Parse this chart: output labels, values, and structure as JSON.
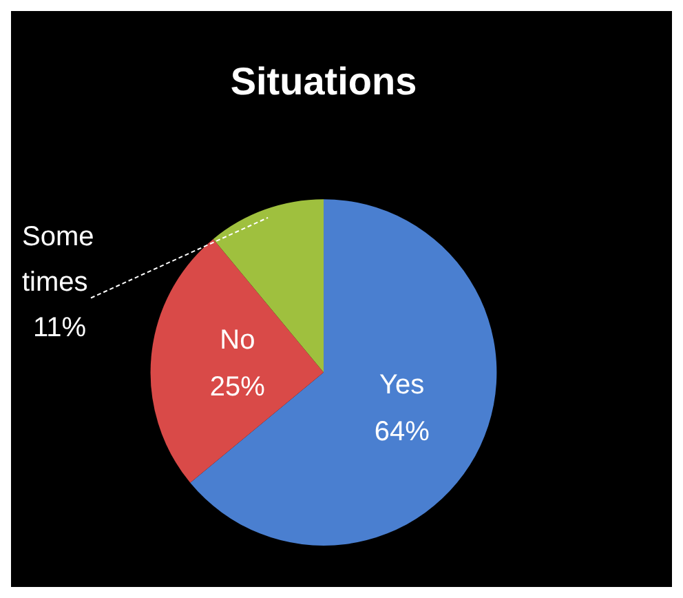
{
  "chart_data": {
    "type": "pie",
    "title": "Situations",
    "categories": [
      "Yes",
      "No",
      "Some times"
    ],
    "values": [
      64,
      25,
      11
    ],
    "colors": [
      "#4a7fd0",
      "#d94a48",
      "#9fc03e"
    ],
    "value_labels": [
      "64%",
      "25%",
      "11%"
    ],
    "legend": false
  }
}
